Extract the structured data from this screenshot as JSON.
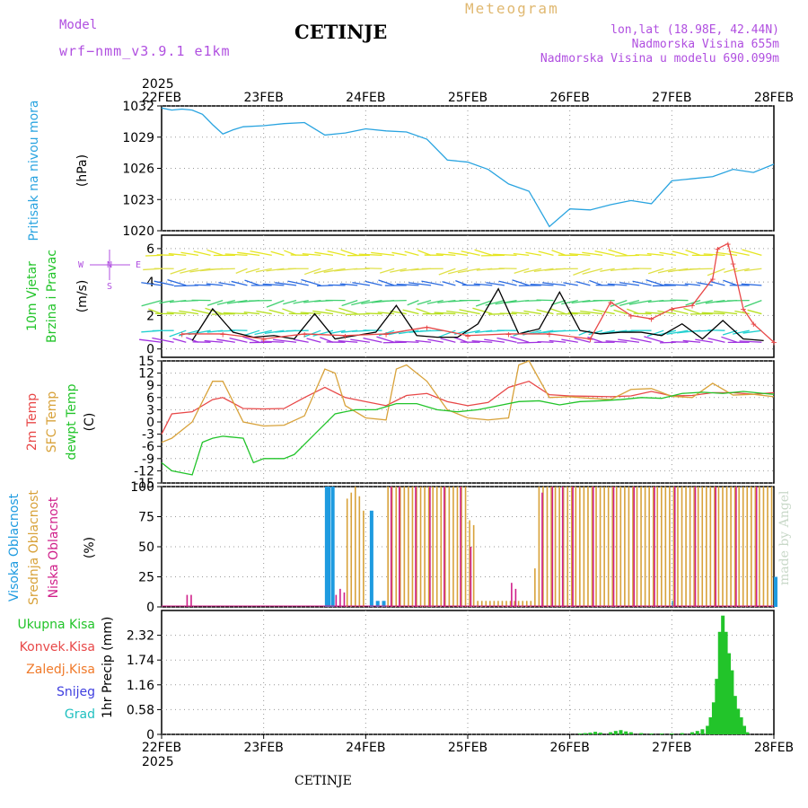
{
  "header": {
    "model_label": "Model",
    "model_name": "wrf−nmm_v3.9.1  e1km",
    "station": "CETINJE",
    "product": "Meteogram",
    "coords": "lon,lat (18.98E, 42.44N)",
    "elevation": "Nadmorska Visina 655m",
    "model_elevation": "Nadmorska Visina u modelu 690.099m"
  },
  "footer": {
    "station": "CETINJE",
    "credit": "made by Angel"
  },
  "colors": {
    "pressure": "#2aa4e0",
    "t2m": "#e84848",
    "tsfc": "#d8a23a",
    "dewpt": "#22c42a",
    "cloud_high": "#1e9be0",
    "cloud_mid": "#d8a23a",
    "cloud_low": "#d0208a",
    "precip": "#22c42a",
    "wind_speed": "#000000",
    "gust": "#e84848"
  },
  "chart_data": [
    {
      "id": "pressure",
      "type": "line",
      "year_label": "2025",
      "x_labels": [
        "22FEB",
        "23FEB",
        "24FEB",
        "25FEB",
        "26FEB",
        "27FEB",
        "28FEB"
      ],
      "ylabel": "Pritisak na nivou mora",
      "unit": "(hPa)",
      "ylim": [
        1020,
        1032
      ],
      "yticks": [
        1020,
        1023,
        1026,
        1029,
        1032
      ],
      "series": [
        {
          "x": [
            0,
            0.1,
            0.2,
            0.3,
            0.4,
            0.5,
            0.6,
            0.7,
            0.8,
            1.0,
            1.2,
            1.4,
            1.6,
            1.8,
            2.0,
            2.2,
            2.4,
            2.6,
            2.8,
            3.0,
            3.2,
            3.4,
            3.6,
            3.8,
            4.0,
            4.2,
            4.4,
            4.6,
            4.8,
            5.0,
            5.2,
            5.4,
            5.6,
            5.8,
            6.0
          ],
          "y": [
            1031.8,
            1031.6,
            1031.7,
            1031.6,
            1031.2,
            1030.2,
            1029.3,
            1029.7,
            1030.0,
            1030.1,
            1030.3,
            1030.4,
            1029.2,
            1029.4,
            1029.8,
            1029.6,
            1029.5,
            1028.8,
            1026.8,
            1026.6,
            1025.9,
            1024.5,
            1023.8,
            1020.4,
            1022.1,
            1022.0,
            1022.5,
            1022.9,
            1022.6,
            1024.8,
            1025.0,
            1025.2,
            1025.9,
            1025.6,
            1026.4
          ]
        }
      ]
    },
    {
      "id": "wind",
      "type": "line",
      "ylabel_1": "10m Vjetar",
      "ylabel_2": "Brzina i Pravac",
      "unit": "(m/s)",
      "compass": {
        "n": "N",
        "s": "S",
        "e": "E",
        "w": "W"
      },
      "ylim": [
        -0.5,
        6.8
      ],
      "yticks": [
        0,
        2,
        4,
        6
      ],
      "series": [
        {
          "name": "speed",
          "x": [
            0.3,
            0.5,
            0.7,
            0.9,
            1.1,
            1.3,
            1.5,
            1.7,
            1.9,
            2.1,
            2.3,
            2.5,
            2.7,
            2.9,
            3.1,
            3.3,
            3.5,
            3.7,
            3.9,
            4.1,
            4.3,
            4.5,
            4.7,
            4.9,
            5.1,
            5.3,
            5.5,
            5.7,
            5.9
          ],
          "y": [
            0.5,
            2.4,
            1.0,
            0.7,
            0.8,
            0.6,
            2.1,
            0.6,
            0.8,
            1.0,
            2.6,
            0.8,
            0.7,
            0.7,
            1.5,
            3.6,
            0.9,
            1.2,
            3.4,
            1.1,
            0.9,
            1.0,
            1.0,
            0.8,
            1.5,
            0.6,
            1.7,
            0.6,
            0.5
          ]
        },
        {
          "name": "gust",
          "x": [
            0.2,
            0.6,
            1.0,
            1.4,
            1.8,
            2.2,
            2.6,
            3.0,
            3.4,
            3.8,
            4.2,
            4.4,
            4.6,
            4.8,
            5.0,
            5.2,
            5.4,
            5.45,
            5.55,
            5.6,
            5.7,
            5.8,
            6.0
          ],
          "y": [
            0.9,
            0.9,
            0.6,
            0.9,
            0.8,
            0.9,
            1.3,
            0.8,
            0.9,
            0.9,
            0.6,
            2.8,
            2.0,
            1.8,
            2.4,
            2.6,
            4.2,
            6.0,
            6.3,
            5.1,
            2.4,
            1.5,
            0.4
          ]
        }
      ]
    },
    {
      "id": "temperature",
      "type": "line",
      "ylabel_1": "2m Temp",
      "ylabel_2": "SFC Temp",
      "ylabel_3": "dewpt Temp",
      "unit": "(C)",
      "ylim": [
        -15,
        15
      ],
      "yticks": [
        -15,
        -12,
        -9,
        -6,
        -3,
        0,
        3,
        6,
        9,
        12,
        15
      ],
      "series": [
        {
          "name": "2m Temp",
          "x": [
            0,
            0.1,
            0.3,
            0.5,
            0.6,
            0.8,
            1.0,
            1.2,
            1.4,
            1.6,
            1.8,
            2.0,
            2.2,
            2.4,
            2.6,
            2.8,
            3.0,
            3.2,
            3.4,
            3.6,
            3.8,
            4.0,
            4.2,
            4.4,
            4.6,
            4.8,
            5.0,
            5.2,
            5.4,
            5.6,
            5.8,
            6.0
          ],
          "y": [
            -3,
            2,
            2.5,
            5.5,
            6,
            3.3,
            3.2,
            3.3,
            6,
            8.5,
            6,
            5,
            4,
            6.5,
            7,
            5,
            4,
            4.8,
            8.5,
            10,
            6.7,
            6.4,
            6.3,
            6.2,
            6.4,
            7.5,
            6.4,
            6.5,
            7.2,
            7.2,
            6.8,
            7.2
          ]
        },
        {
          "name": "SFC Temp",
          "x": [
            0,
            0.1,
            0.3,
            0.5,
            0.6,
            0.8,
            1.0,
            1.2,
            1.4,
            1.6,
            1.7,
            1.8,
            2.0,
            2.2,
            2.3,
            2.4,
            2.5,
            2.6,
            2.8,
            3.0,
            3.2,
            3.4,
            3.5,
            3.6,
            3.8,
            4.0,
            4.2,
            4.4,
            4.6,
            4.8,
            5.0,
            5.2,
            5.4,
            5.6,
            5.8,
            6.0
          ],
          "y": [
            -5,
            -4,
            0,
            10,
            10,
            0,
            -1,
            -0.8,
            1.5,
            13,
            12,
            4,
            1,
            0.5,
            13,
            14,
            12,
            10,
            3,
            1,
            0.5,
            1,
            14,
            15,
            6,
            6.2,
            5.8,
            5.5,
            8,
            8.2,
            6.3,
            6,
            9.5,
            6.6,
            6.8,
            6.2
          ]
        },
        {
          "name": "dewpt Temp",
          "x": [
            0,
            0.1,
            0.3,
            0.4,
            0.5,
            0.6,
            0.8,
            0.9,
            1.0,
            1.2,
            1.3,
            1.5,
            1.7,
            1.9,
            2.1,
            2.3,
            2.5,
            2.7,
            2.9,
            3.1,
            3.3,
            3.5,
            3.7,
            3.9,
            4.1,
            4.3,
            4.5,
            4.7,
            4.9,
            5.1,
            5.3,
            5.5,
            5.7,
            5.9,
            6.0
          ],
          "y": [
            -10,
            -12,
            -13,
            -5,
            -4,
            -3.5,
            -4,
            -10,
            -9,
            -9,
            -8,
            -3,
            2,
            3,
            3,
            4.5,
            4.5,
            3,
            2.5,
            3,
            4,
            5,
            5.2,
            4.2,
            5,
            5.2,
            5.5,
            6,
            5.8,
            7,
            7.3,
            7,
            7.5,
            7,
            6.8
          ]
        }
      ]
    },
    {
      "id": "clouds",
      "type": "bar",
      "ylabel_1": "Visoka Oblacnost",
      "ylabel_2": "Srednja Oblacnost",
      "ylabel_3": "Niska Oblacnost",
      "unit": "(%)",
      "ylim": [
        0,
        100
      ],
      "yticks": [
        0,
        25,
        50,
        75,
        100
      ],
      "series": [
        {
          "name": "Visoka Oblacnost",
          "x": [
            1.6,
            1.62,
            1.66,
            2.04,
            2.1,
            2.16,
            5.0,
            6.0
          ],
          "values": [
            100,
            100,
            100,
            80,
            5,
            5,
            5,
            25
          ]
        },
        {
          "name": "Srednja Oblacnost",
          "x": [
            1.8,
            1.84,
            1.88,
            1.92,
            1.96,
            2.2,
            2.24,
            2.28,
            2.32,
            2.36,
            2.4,
            2.44,
            2.48,
            2.52,
            2.56,
            2.6,
            2.64,
            2.68,
            2.72,
            2.76,
            2.8,
            2.84,
            2.88,
            2.92,
            2.96,
            3.0,
            3.04,
            3.08,
            3.12,
            3.16,
            3.2,
            3.24,
            3.28,
            3.32,
            3.36,
            3.4,
            3.44,
            3.48,
            3.52,
            3.56,
            3.6,
            3.64,
            3.68,
            3.72,
            3.76,
            3.8,
            3.84,
            3.88,
            3.92,
            3.96,
            4.0,
            4.04,
            4.08,
            4.12,
            4.16,
            4.2,
            4.24,
            4.28,
            4.32,
            4.36,
            4.4,
            4.44,
            4.48,
            4.52,
            4.56,
            4.6,
            4.64,
            4.68,
            4.72,
            4.76,
            4.8,
            4.84,
            4.88,
            4.92,
            4.96,
            5.0,
            5.04,
            5.08,
            5.12,
            5.16,
            5.2,
            5.24,
            5.28,
            5.32,
            5.36,
            5.4,
            5.44,
            5.48,
            5.52,
            5.56,
            5.6,
            5.64,
            5.68,
            5.72,
            5.76,
            5.8,
            5.84,
            5.88,
            5.92,
            5.96
          ],
          "values": [
            90,
            95,
            100,
            92,
            80,
            100,
            100,
            100,
            100,
            100,
            100,
            100,
            100,
            100,
            100,
            100,
            100,
            100,
            100,
            100,
            100,
            100,
            100,
            100,
            100,
            72,
            68,
            5,
            5,
            5,
            5,
            5,
            5,
            5,
            5,
            5,
            5,
            5,
            5,
            5,
            5,
            32,
            100,
            100,
            100,
            100,
            100,
            100,
            100,
            100,
            100,
            100,
            100,
            100,
            100,
            100,
            100,
            100,
            100,
            100,
            100,
            100,
            100,
            100,
            100,
            100,
            100,
            100,
            100,
            100,
            100,
            100,
            100,
            100,
            100,
            100,
            100,
            100,
            100,
            100,
            100,
            100,
            100,
            100,
            100,
            100,
            100,
            100,
            100,
            100,
            100,
            100,
            100,
            100,
            100,
            100,
            100,
            100,
            100,
            100
          ]
        },
        {
          "name": "Niska Oblacnost",
          "x": [
            0.22,
            0.26,
            1.68,
            1.72,
            1.76,
            2.22,
            2.3,
            2.46,
            2.6,
            2.74,
            2.9,
            3.0,
            3.4,
            3.44,
            3.7,
            3.8,
            3.9,
            4.0,
            4.2,
            4.4,
            4.6,
            4.8,
            5.0,
            5.2,
            5.4,
            5.6,
            5.8
          ],
          "values": [
            10,
            10,
            10,
            15,
            12,
            100,
            100,
            100,
            100,
            100,
            100,
            50,
            20,
            15,
            95,
            100,
            100,
            100,
            100,
            100,
            100,
            100,
            100,
            100,
            100,
            100,
            100
          ]
        }
      ]
    },
    {
      "id": "precip",
      "type": "bar",
      "ylabel": "1hr Precip (mm)",
      "legend": [
        "Ukupna Kisa",
        "Konvek.Kisa",
        "Zaledj.Kisa",
        "Snijeg",
        "Grad"
      ],
      "legend_colors": [
        "#22c42a",
        "#e84848",
        "#f07a2a",
        "#4040e0",
        "#20c0c0"
      ],
      "ylim": [
        0,
        2.9
      ],
      "yticks": [
        0,
        0.58,
        1.16,
        1.74,
        2.32
      ],
      "ytick_labels": [
        "0",
        "0.58",
        "1.16",
        "1.74",
        "2.32"
      ],
      "series": [
        {
          "name": "Ukupna Kisa",
          "x": [
            4.1,
            4.15,
            4.2,
            4.25,
            4.3,
            4.4,
            4.45,
            4.5,
            4.55,
            4.6,
            4.7,
            4.8,
            4.9,
            5.0,
            5.1,
            5.2,
            5.25,
            5.3,
            5.35,
            5.38,
            5.41,
            5.44,
            5.47,
            5.5,
            5.53,
            5.56,
            5.59,
            5.62,
            5.65,
            5.68,
            5.71,
            5.74
          ],
          "values": [
            0.02,
            0.03,
            0.04,
            0.06,
            0.04,
            0.05,
            0.08,
            0.1,
            0.07,
            0.05,
            0.03,
            0.02,
            0.02,
            0.02,
            0.03,
            0.05,
            0.08,
            0.12,
            0.2,
            0.4,
            0.75,
            1.3,
            2.4,
            2.78,
            2.4,
            1.9,
            1.5,
            0.9,
            0.6,
            0.4,
            0.2,
            0.05
          ]
        }
      ]
    }
  ]
}
